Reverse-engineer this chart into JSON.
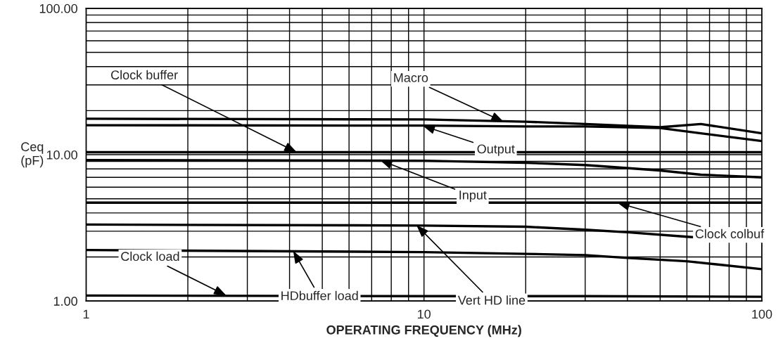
{
  "chart_data": {
    "type": "line",
    "xlabel": "OPERATING FREQUENCY (MHz)",
    "ylabel": "Ceq\n(pF)",
    "log": "xy",
    "grid": true,
    "legend": false,
    "marker": "none",
    "line_style": "solid",
    "xlim": [
      1,
      100
    ],
    "ylim": [
      1,
      100
    ],
    "xticks": [
      1,
      {
        "value": 2,
        "label": null
      },
      {
        "value": 3,
        "label": null
      },
      {
        "value": 4,
        "label": null
      },
      {
        "value": 5,
        "label": null
      },
      {
        "value": 6,
        "label": null
      },
      {
        "value": 7,
        "label": null
      },
      {
        "value": 8,
        "label": null
      },
      {
        "value": 9,
        "label": null
      },
      10,
      {
        "value": 20,
        "label": null
      },
      {
        "value": 30,
        "label": null
      },
      {
        "value": 40,
        "label": null
      },
      {
        "value": 50,
        "label": null
      },
      {
        "value": 60,
        "label": null
      },
      {
        "value": 70,
        "label": null
      },
      {
        "value": 80,
        "label": null
      },
      {
        "value": 90,
        "label": null
      },
      100
    ],
    "yticks": [
      {
        "value": 1,
        "label": "1.00"
      },
      {
        "value": 2,
        "label": null
      },
      {
        "value": 3,
        "label": null
      },
      {
        "value": 4,
        "label": null
      },
      {
        "value": 5,
        "label": null
      },
      {
        "value": 6,
        "label": null
      },
      {
        "value": 7,
        "label": null
      },
      {
        "value": 8,
        "label": null
      },
      {
        "value": 9,
        "label": null
      },
      {
        "value": 10,
        "label": "10.00"
      },
      {
        "value": 20,
        "label": null
      },
      {
        "value": 30,
        "label": null
      },
      {
        "value": 40,
        "label": null
      },
      {
        "value": 50,
        "label": null
      },
      {
        "value": 60,
        "label": null
      },
      {
        "value": 70,
        "label": null
      },
      {
        "value": 80,
        "label": null
      },
      {
        "value": 90,
        "label": null
      },
      {
        "value": 100,
        "label": "100.00"
      }
    ],
    "series": [
      {
        "color": "#000000",
        "x": [
          1,
          10,
          20,
          30,
          50,
          66,
          100
        ],
        "values": [
          17.6,
          17.4,
          16.8,
          16.2,
          15.4,
          16.2,
          14.0
        ]
      },
      {
        "color": "#000000",
        "x": [
          1,
          10,
          20,
          30,
          50,
          66,
          100
        ],
        "values": [
          15.9,
          15.8,
          15.6,
          15.6,
          15.2,
          14.0,
          12.4
        ]
      },
      {
        "color": "#000000",
        "x": [
          1,
          10,
          30,
          100
        ],
        "values": [
          10.4,
          10.4,
          10.4,
          10.4
        ]
      },
      {
        "color": "#000000",
        "x": [
          1,
          10,
          20,
          30,
          50,
          66,
          100
        ],
        "values": [
          9.2,
          9.1,
          8.8,
          8.5,
          7.8,
          7.3,
          7.0
        ]
      },
      {
        "color": "#000000",
        "x": [
          1,
          10,
          30,
          100
        ],
        "values": [
          4.7,
          4.7,
          4.7,
          4.7
        ]
      },
      {
        "color": "#000000",
        "x": [
          1,
          10,
          20,
          30,
          40,
          60,
          100
        ],
        "values": [
          3.33,
          3.28,
          3.22,
          3.07,
          2.95,
          2.75,
          2.55
        ]
      },
      {
        "color": "#000000",
        "x": [
          1,
          10,
          20,
          30,
          40,
          60,
          100
        ],
        "values": [
          2.23,
          2.16,
          2.1,
          2.06,
          1.97,
          1.87,
          1.65
        ]
      },
      {
        "color": "#000000",
        "x": [
          1,
          10,
          30,
          100
        ],
        "values": [
          1.09,
          1.08,
          1.08,
          1.07
        ]
      }
    ],
    "annotations": [
      {
        "text": "Clock buffer",
        "x": 4.2,
        "y": 10.4
      },
      {
        "text": "Macro",
        "x": 17.2,
        "y": 16.8
      },
      {
        "text": "Output",
        "x": 9.9,
        "y": 15.8
      },
      {
        "text": "Input",
        "x": 7.4,
        "y": 9.2
      },
      {
        "text": "Clock colbuf",
        "x": 37.3,
        "y": 4.7
      },
      {
        "text": "Vert HD line",
        "x": 9.5,
        "y": 3.3
      },
      {
        "text": "HDbuffer load",
        "x": 4.1,
        "y": 2.2
      },
      {
        "text": "Clock load",
        "x": 2.6,
        "y": 1.09
      }
    ]
  }
}
